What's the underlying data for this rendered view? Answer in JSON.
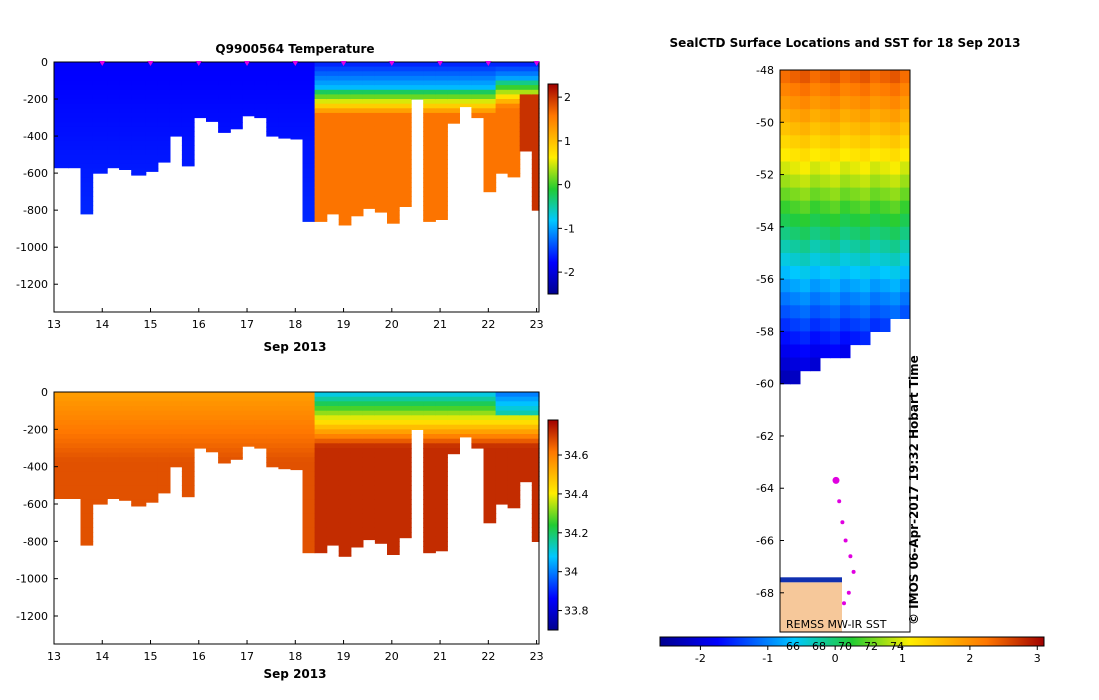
{
  "chart_data": [
    {
      "type": "heatmap",
      "title": "Q9900564  Temperature",
      "xlabel": "Sep 2013",
      "x_ticks": [
        "13",
        "14",
        "15",
        "16",
        "17",
        "18",
        "19",
        "20",
        "21",
        "22",
        "23"
      ],
      "xlim": [
        13,
        23.05
      ],
      "ylim": [
        -1350,
        0
      ],
      "y_ticks": [
        "0",
        "-200",
        "-400",
        "-600",
        "-800",
        "-1000",
        "-1200"
      ],
      "colorbar": {
        "range": [
          -2.5,
          2.3
        ],
        "ticks": [
          "2",
          "1",
          "0",
          "-1",
          "-2"
        ]
      },
      "profile_days": [
        13.0,
        13.3,
        13.55,
        13.8,
        14.1,
        14.35,
        14.6,
        14.9,
        15.15,
        15.4,
        15.65,
        15.9,
        16.15,
        16.4,
        16.65,
        16.9,
        17.15,
        17.4,
        17.65,
        17.9,
        18.15,
        18.4,
        18.65,
        18.9,
        19.15,
        19.4,
        19.65,
        19.9,
        20.15,
        20.4,
        20.65,
        20.9,
        21.15,
        21.4,
        21.65,
        21.9,
        22.15,
        22.4,
        22.65,
        22.9
      ],
      "profile_max_depth_m": [
        570,
        570,
        820,
        600,
        570,
        580,
        610,
        590,
        540,
        400,
        560,
        300,
        320,
        380,
        360,
        290,
        300,
        400,
        410,
        415,
        860,
        860,
        820,
        880,
        830,
        790,
        810,
        870,
        780,
        200,
        860,
        850,
        330,
        240,
        300,
        700,
        600,
        620,
        480,
        800
      ],
      "variable_range": [
        -1.9,
        1.9
      ]
    },
    {
      "type": "heatmap",
      "title": "",
      "xlabel": "Sep 2013",
      "x_ticks": [
        "13",
        "14",
        "15",
        "16",
        "17",
        "18",
        "19",
        "20",
        "21",
        "22",
        "23"
      ],
      "xlim": [
        13,
        23.05
      ],
      "ylim": [
        -1350,
        0
      ],
      "y_ticks": [
        "0",
        "-200",
        "-400",
        "-600",
        "-800",
        "-1000",
        "-1200"
      ],
      "colorbar": {
        "range": [
          33.7,
          34.78
        ],
        "ticks": [
          "34.6",
          "34.4",
          "34.2",
          "34",
          "33.8"
        ]
      },
      "variable_range": [
        33.9,
        34.75
      ]
    },
    {
      "type": "heatmap",
      "title": "SealCTD Surface Locations and SST for 18 Sep 2013",
      "y_ticks": [
        "-48",
        "-50",
        "-52",
        "-54",
        "-56",
        "-58",
        "-60",
        "-62",
        "-64",
        "-66",
        "-68"
      ],
      "ylim": [
        -69.5,
        -48
      ],
      "colorbar": {
        "range": [
          -2.6,
          3.1
        ],
        "ticks": [
          "-2",
          "-1",
          "0",
          "1",
          "2",
          "3"
        ],
        "sub_ticks": [
          "66",
          "68",
          "70",
          "72",
          "74"
        ]
      },
      "source_label": "REMSS MW-IR SST",
      "credit": "© IMOS 06-Apr-2017 19:32 Hobart Time",
      "track_points": [
        [
          -63.7,
          0
        ],
        [
          -64.5,
          0.2
        ],
        [
          -65.3,
          0.4
        ],
        [
          -66.0,
          0.6
        ],
        [
          -66.6,
          0.9
        ],
        [
          -67.2,
          1.1
        ],
        [
          -68.0,
          0.8
        ],
        [
          -68.4,
          0.5
        ]
      ]
    }
  ]
}
